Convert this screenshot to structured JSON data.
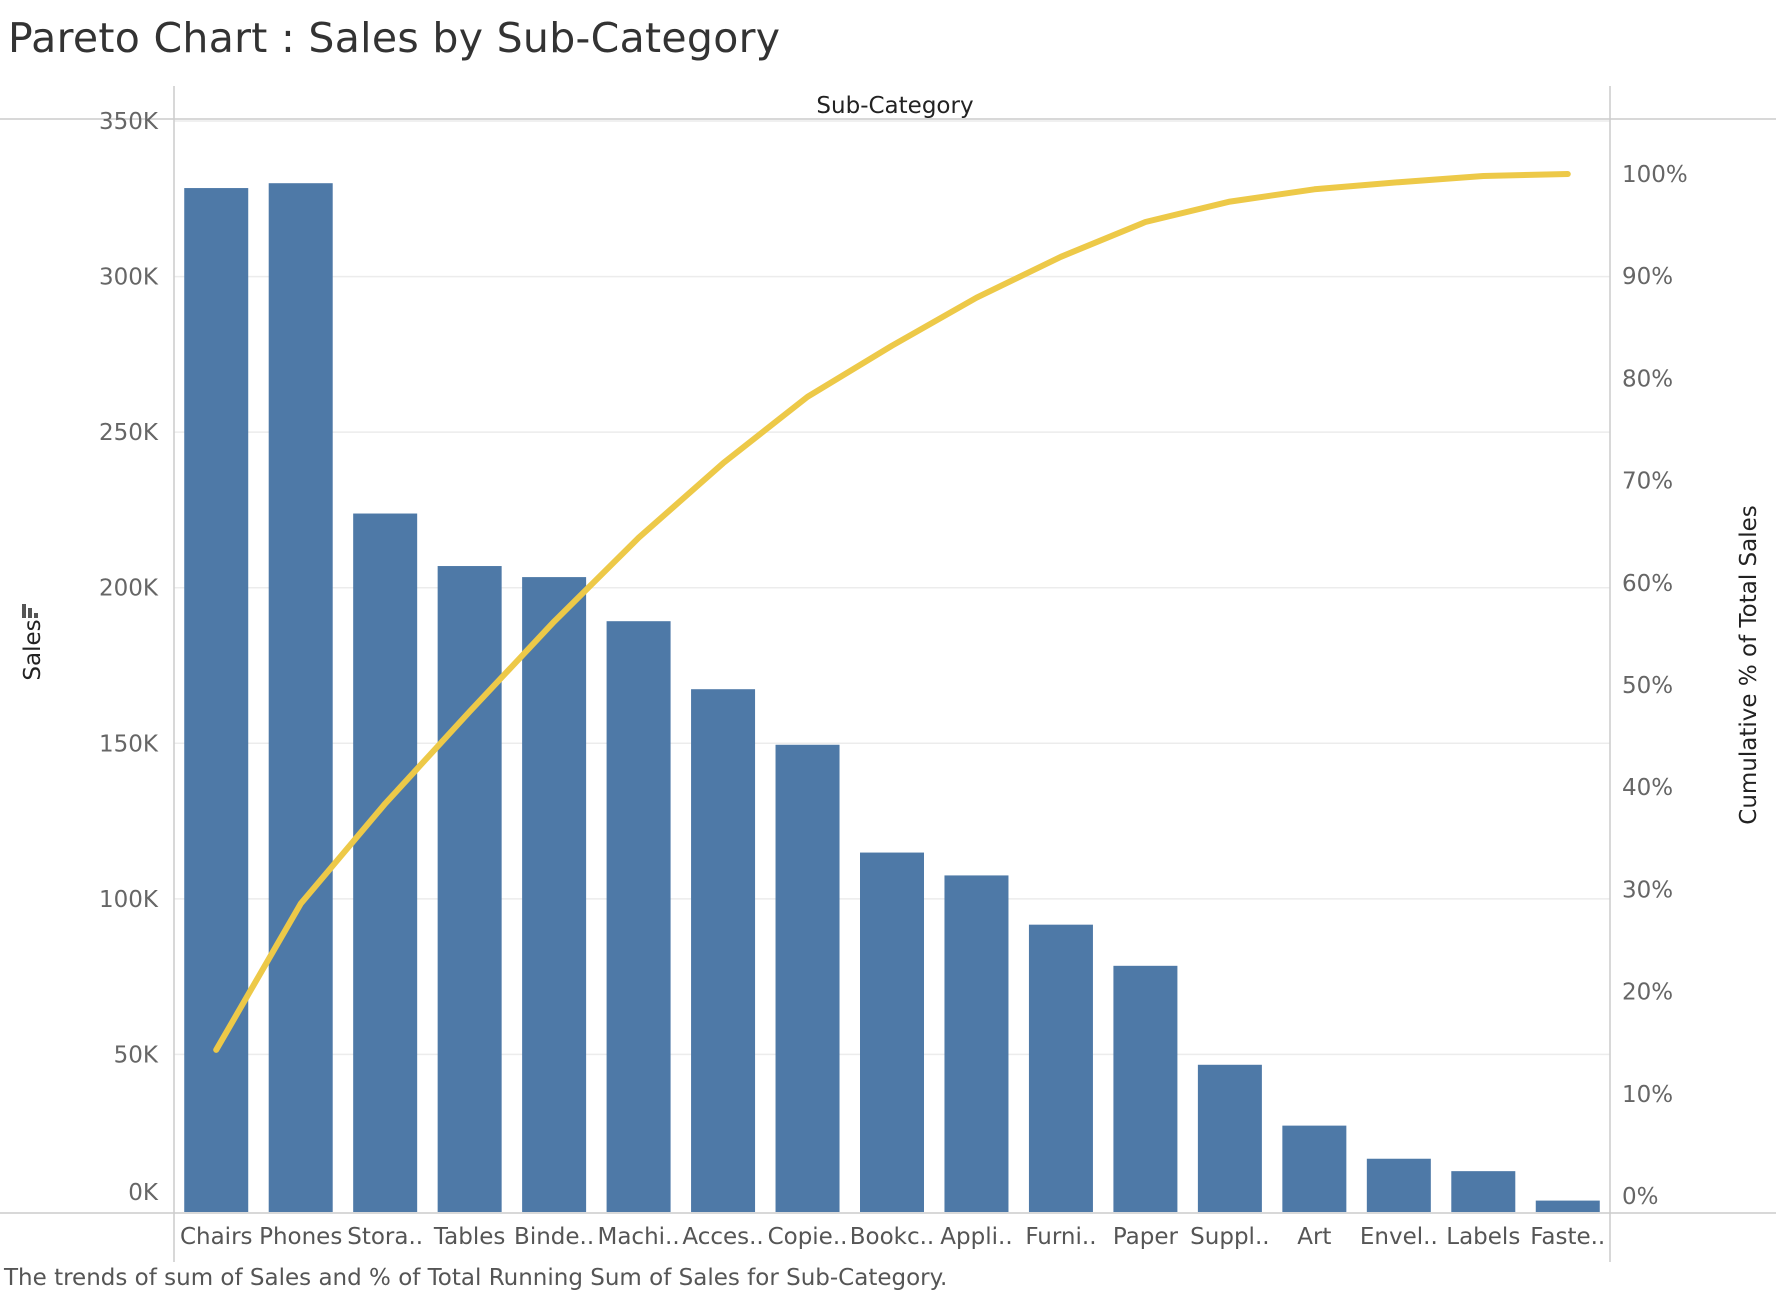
{
  "page": {
    "title": "Pareto Chart : Sales by Sub-Category",
    "caption": "The trends of sum of Sales and % of Total Running Sum of Sales for Sub-Category."
  },
  "chart_data": {
    "type": "bar",
    "title": "Pareto Chart : Sales by Sub-Category",
    "header_label": "Sub-Category",
    "ylabel": "Sales",
    "y2label": "Cumulative % of Total Sales",
    "categories": [
      "Chairs",
      "Phones",
      "Stora..",
      "Tables",
      "Binde..",
      "Machi..",
      "Acces..",
      "Copie..",
      "Bookc..",
      "Appli..",
      "Furni..",
      "Paper",
      "Suppl..",
      "Art",
      "Envel..",
      "Labels",
      "Faste.."
    ],
    "series": [
      {
        "name": "Sales",
        "type": "bar",
        "axis": "left",
        "values": [
          328449,
          330007,
          223844,
          206966,
          203413,
          189239,
          167380,
          149528,
          114880,
          107532,
          91705,
          78479,
          46674,
          27119,
          16476,
          12486,
          3024
        ]
      },
      {
        "name": "Cumulative % of Total Sales",
        "type": "line",
        "axis": "right",
        "values": [
          14.3,
          28.6,
          38.4,
          47.4,
          56.2,
          64.4,
          71.7,
          78.2,
          83.2,
          87.9,
          91.9,
          95.3,
          97.3,
          98.5,
          99.2,
          99.8,
          100.0
        ]
      }
    ],
    "ylim": [
      0,
      350000
    ],
    "y2lim": [
      0,
      100
    ],
    "yticks": [
      "0K",
      "50K",
      "100K",
      "150K",
      "200K",
      "250K",
      "300K",
      "350K"
    ],
    "y2ticks": [
      "0%",
      "10%",
      "20%",
      "30%",
      "40%",
      "50%",
      "60%",
      "70%",
      "80%",
      "90%",
      "100%"
    ],
    "grid": true,
    "colors": {
      "bar": "#4e79a7",
      "line": "#edc948",
      "grid": "#ececec",
      "axis": "#cccccc"
    },
    "icons": {
      "sort": "sort-descending-icon"
    }
  }
}
